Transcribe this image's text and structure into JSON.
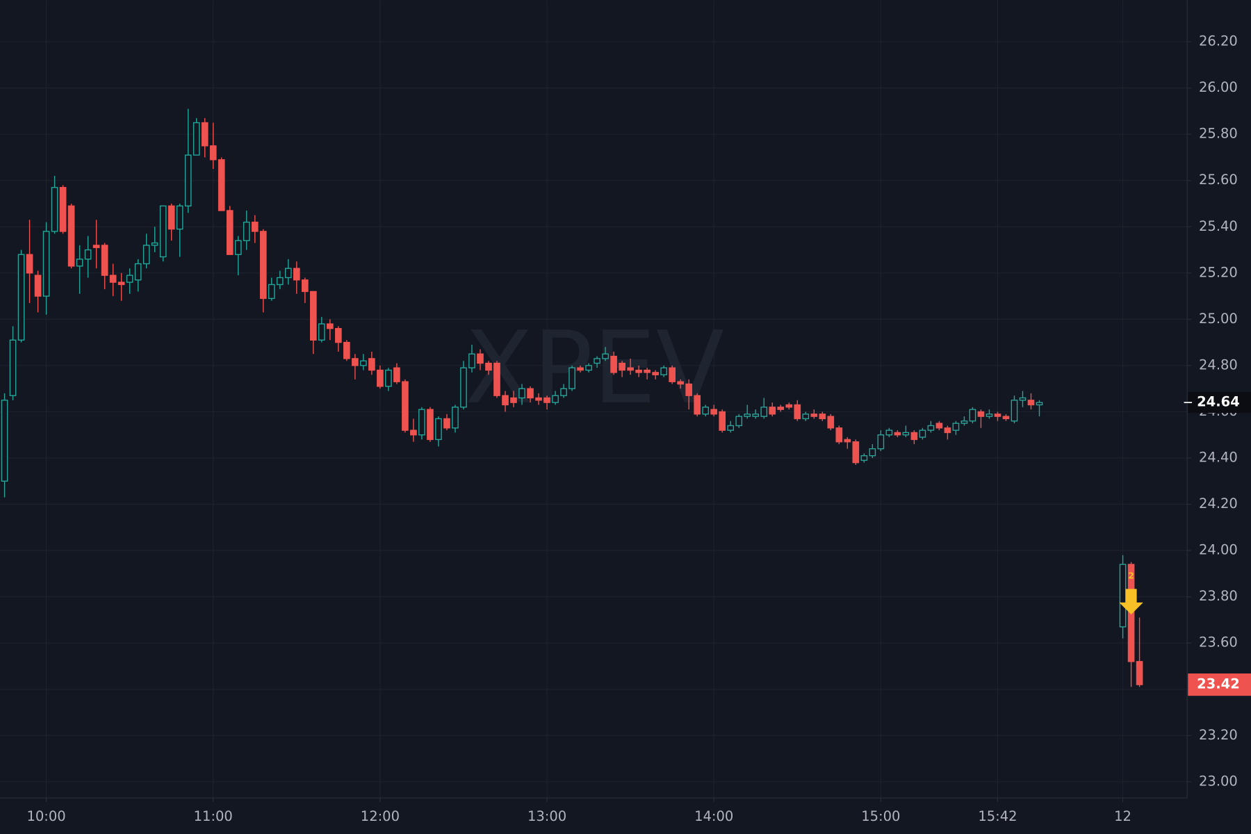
{
  "chart_data": {
    "type": "candlestick",
    "watermark": "XPEV",
    "categories": [
      null,
      null,
      null,
      null,
      null,
      "10:00",
      null,
      null,
      null,
      null,
      null,
      null,
      null,
      null,
      null,
      null,
      null,
      null,
      null,
      null,
      null,
      null,
      null,
      null,
      null,
      "11:00",
      null,
      null,
      null,
      null,
      null,
      null,
      null,
      null,
      null,
      null,
      null,
      null,
      null,
      null,
      null,
      null,
      null,
      null,
      null,
      "12:00",
      null,
      null,
      null,
      null,
      null,
      null,
      null,
      null,
      null,
      null,
      null,
      null,
      null,
      null,
      null,
      null,
      null,
      null,
      null,
      "13:00",
      null,
      null,
      null,
      null,
      null,
      null,
      null,
      null,
      null,
      null,
      null,
      null,
      null,
      null,
      null,
      null,
      null,
      null,
      null,
      "14:00",
      null,
      null,
      null,
      null,
      null,
      null,
      null,
      null,
      null,
      null,
      null,
      null,
      null,
      null,
      null,
      null,
      null,
      null,
      null,
      "15:00",
      null,
      null,
      null,
      null,
      null,
      null,
      null,
      null,
      null,
      null,
      null,
      null,
      null,
      "15:42",
      null,
      null,
      null,
      null,
      null,
      null,
      null,
      null,
      null,
      null,
      null,
      null,
      null,
      null,
      "12",
      null,
      null
    ],
    "open": [
      24.3,
      24.67,
      24.91,
      25.28,
      25.19,
      25.1,
      25.38,
      25.57,
      25.49,
      25.23,
      25.26,
      25.32,
      25.32,
      25.19,
      25.16,
      25.16,
      25.17,
      25.24,
      25.32,
      25.27,
      25.49,
      25.39,
      25.49,
      25.71,
      25.85,
      25.75,
      25.69,
      25.47,
      25.28,
      25.34,
      25.42,
      25.38,
      25.09,
      25.15,
      25.18,
      25.22,
      25.17,
      25.12,
      24.91,
      24.98,
      24.96,
      24.9,
      24.83,
      24.8,
      24.83,
      24.78,
      24.71,
      24.79,
      24.73,
      24.52,
      24.5,
      24.61,
      24.48,
      24.57,
      24.53,
      24.62,
      24.79,
      24.85,
      24.81,
      24.81,
      24.67,
      24.66,
      24.66,
      24.7,
      24.66,
      24.66,
      24.64,
      24.67,
      24.7,
      24.79,
      24.78,
      24.81,
      24.83,
      24.84,
      24.81,
      24.79,
      24.78,
      24.78,
      24.77,
      24.76,
      24.79,
      24.73,
      24.72,
      24.67,
      24.59,
      24.61,
      24.6,
      24.52,
      24.54,
      24.58,
      24.58,
      24.58,
      24.62,
      24.62,
      24.63,
      24.63,
      24.57,
      24.59,
      24.59,
      24.58,
      24.53,
      24.48,
      24.47,
      24.39,
      24.41,
      24.44,
      24.5,
      24.51,
      24.5,
      24.51,
      24.49,
      24.52,
      24.55,
      24.53,
      24.52,
      24.55,
      24.56,
      24.6,
      24.58,
      24.59,
      24.58,
      24.56,
      24.65,
      24.65,
      24.63,
      null,
      null,
      null,
      null,
      null,
      null,
      null,
      null,
      null,
      23.67,
      23.94,
      23.52
    ],
    "high": [
      24.68,
      24.97,
      25.3,
      25.43,
      25.21,
      25.42,
      25.62,
      25.58,
      25.5,
      25.32,
      25.36,
      25.43,
      25.33,
      25.24,
      25.2,
      25.22,
      25.26,
      25.37,
      25.4,
      25.49,
      25.5,
      25.5,
      25.91,
      25.87,
      25.87,
      25.85,
      25.7,
      25.49,
      25.36,
      25.47,
      25.45,
      25.39,
      25.18,
      25.21,
      25.26,
      25.25,
      25.18,
      25.12,
      25.01,
      25.0,
      24.97,
      24.91,
      24.85,
      24.85,
      24.86,
      24.8,
      24.79,
      24.81,
      24.74,
      24.57,
      24.62,
      24.62,
      24.58,
      24.59,
      24.63,
      24.82,
      24.89,
      24.87,
      24.82,
      24.82,
      24.69,
      24.69,
      24.72,
      24.71,
      24.68,
      24.67,
      24.69,
      24.72,
      24.8,
      24.8,
      24.81,
      24.84,
      24.88,
      24.86,
      24.82,
      24.83,
      24.8,
      24.79,
      24.78,
      24.8,
      24.8,
      24.74,
      24.74,
      24.68,
      24.63,
      24.63,
      24.61,
      24.56,
      24.59,
      24.63,
      24.61,
      24.66,
      24.64,
      24.63,
      24.64,
      24.65,
      24.6,
      24.61,
      24.6,
      24.59,
      24.54,
      24.49,
      24.48,
      24.42,
      24.46,
      24.52,
      24.53,
      24.52,
      24.54,
      24.52,
      24.53,
      24.56,
      24.56,
      24.54,
      24.56,
      24.58,
      24.62,
      24.61,
      24.61,
      24.6,
      24.59,
      24.67,
      24.69,
      24.68,
      24.65,
      null,
      null,
      null,
      null,
      null,
      null,
      null,
      null,
      null,
      23.98,
      23.95,
      23.71
    ],
    "low": [
      24.23,
      24.65,
      24.9,
      25.07,
      25.03,
      25.02,
      25.37,
      25.37,
      25.22,
      25.11,
      25.18,
      25.22,
      25.13,
      25.1,
      25.08,
      25.11,
      25.12,
      25.22,
      25.29,
      25.25,
      25.34,
      25.27,
      25.46,
      25.71,
      25.7,
      25.65,
      25.47,
      25.28,
      25.19,
      25.3,
      25.33,
      25.03,
      25.08,
      25.13,
      25.15,
      25.11,
      25.07,
      24.85,
      24.9,
      24.91,
      24.86,
      24.82,
      24.74,
      24.78,
      24.76,
      24.7,
      24.69,
      24.72,
      24.51,
      24.47,
      24.48,
      24.47,
      24.45,
      24.52,
      24.51,
      24.61,
      24.77,
      24.78,
      24.76,
      24.66,
      24.6,
      24.62,
      24.63,
      24.64,
      24.63,
      24.61,
      24.63,
      24.66,
      24.69,
      24.77,
      24.77,
      24.79,
      24.82,
      24.76,
      24.75,
      24.76,
      24.75,
      24.74,
      24.74,
      24.75,
      24.72,
      24.7,
      24.61,
      24.58,
      24.58,
      24.58,
      24.51,
      24.51,
      24.53,
      24.57,
      24.57,
      24.57,
      24.58,
      24.6,
      24.61,
      24.56,
      24.56,
      24.57,
      24.56,
      24.52,
      24.46,
      24.44,
      24.37,
      24.38,
      24.4,
      24.43,
      24.49,
      24.49,
      24.49,
      24.46,
      24.48,
      24.51,
      24.52,
      24.48,
      24.5,
      24.54,
      24.55,
      24.53,
      24.57,
      24.56,
      24.56,
      24.55,
      24.62,
      24.61,
      24.58,
      null,
      null,
      null,
      null,
      null,
      null,
      null,
      null,
      null,
      23.62,
      23.41,
      23.41
    ],
    "close": [
      24.65,
      24.91,
      25.28,
      25.2,
      25.1,
      25.38,
      25.57,
      25.38,
      25.23,
      25.26,
      25.3,
      25.31,
      25.19,
      25.16,
      25.15,
      25.19,
      25.24,
      25.32,
      25.33,
      25.49,
      25.39,
      25.49,
      25.71,
      25.85,
      25.75,
      25.69,
      25.47,
      25.28,
      25.34,
      25.42,
      25.38,
      25.09,
      25.15,
      25.18,
      25.22,
      25.17,
      25.12,
      24.91,
      24.98,
      24.96,
      24.9,
      24.83,
      24.8,
      24.82,
      24.78,
      24.71,
      24.78,
      24.73,
      24.52,
      24.5,
      24.61,
      24.48,
      24.57,
      24.53,
      24.62,
      24.79,
      24.85,
      24.81,
      24.78,
      24.67,
      24.63,
      24.64,
      24.7,
      24.66,
      24.65,
      24.64,
      24.67,
      24.7,
      24.79,
      24.78,
      24.8,
      24.83,
      24.85,
      24.77,
      24.78,
      24.78,
      24.77,
      24.77,
      24.76,
      24.79,
      24.73,
      24.72,
      24.67,
      24.59,
      24.62,
      24.59,
      24.52,
      24.54,
      24.58,
      24.59,
      24.59,
      24.62,
      24.59,
      24.61,
      24.62,
      24.57,
      24.59,
      24.58,
      24.57,
      24.53,
      24.47,
      24.47,
      24.38,
      24.41,
      24.44,
      24.5,
      24.52,
      24.5,
      24.51,
      24.48,
      24.52,
      24.54,
      24.53,
      24.51,
      24.55,
      24.56,
      24.61,
      24.58,
      24.59,
      24.58,
      24.57,
      24.65,
      24.66,
      24.63,
      24.64,
      null,
      null,
      null,
      null,
      null,
      null,
      null,
      null,
      null,
      23.94,
      23.52,
      23.42
    ],
    "up_color": "#26a69a",
    "down_color": "#ef5350",
    "ylim": [
      22.93,
      26.38
    ],
    "yticks": [
      {
        "value": 23,
        "label": "23.00"
      },
      {
        "value": 23.2,
        "label": "23.20"
      },
      {
        "value": 23.4,
        "label": "23.40"
      },
      {
        "value": 23.6,
        "label": "23.60"
      },
      {
        "value": 23.8,
        "label": "23.80"
      },
      {
        "value": 24,
        "label": "24.00"
      },
      {
        "value": 24.2,
        "label": "24.20"
      },
      {
        "value": 24.4,
        "label": "24.40"
      },
      {
        "value": 24.6,
        "label": "24.60"
      },
      {
        "value": 24.8,
        "label": "24.80"
      },
      {
        "value": 25,
        "label": "25.00"
      },
      {
        "value": 25.2,
        "label": "25.20"
      },
      {
        "value": 25.4,
        "label": "25.40"
      },
      {
        "value": 25.6,
        "label": "25.60"
      },
      {
        "value": 25.8,
        "label": "25.80"
      },
      {
        "value": 26,
        "label": "26.00"
      },
      {
        "value": 26.2,
        "label": "26.20"
      }
    ],
    "grid": true,
    "crosshair_price": 24.64,
    "last_price": 23.42,
    "marker_label": 2
  }
}
